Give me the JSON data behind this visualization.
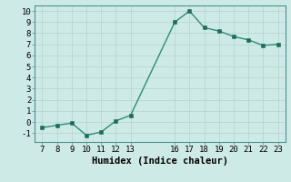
{
  "x": [
    7,
    8,
    9,
    10,
    11,
    12,
    13,
    16,
    17,
    18,
    19,
    20,
    21,
    22,
    23
  ],
  "y": [
    -0.5,
    -0.3,
    -0.1,
    -1.2,
    -0.9,
    0.1,
    0.6,
    9.0,
    10.0,
    8.5,
    8.2,
    7.7,
    7.4,
    6.9,
    7.0
  ],
  "xlabel": "Humidex (Indice chaleur)",
  "line_color": "#2e8b7a",
  "marker_color": "#1e6b5a",
  "bg_color": "#ceeae6",
  "grid_color": "#b8d8d2",
  "ylim": [
    -1.8,
    10.5
  ],
  "xlim": [
    6.5,
    23.5
  ],
  "xticks": [
    7,
    8,
    9,
    10,
    11,
    12,
    13,
    16,
    17,
    18,
    19,
    20,
    21,
    22,
    23
  ],
  "yticks": [
    -1,
    0,
    1,
    2,
    3,
    4,
    5,
    6,
    7,
    8,
    9,
    10
  ],
  "tick_fontsize": 6.5,
  "xlabel_fontsize": 7.5,
  "marker_size": 2.5,
  "line_width": 1.0
}
